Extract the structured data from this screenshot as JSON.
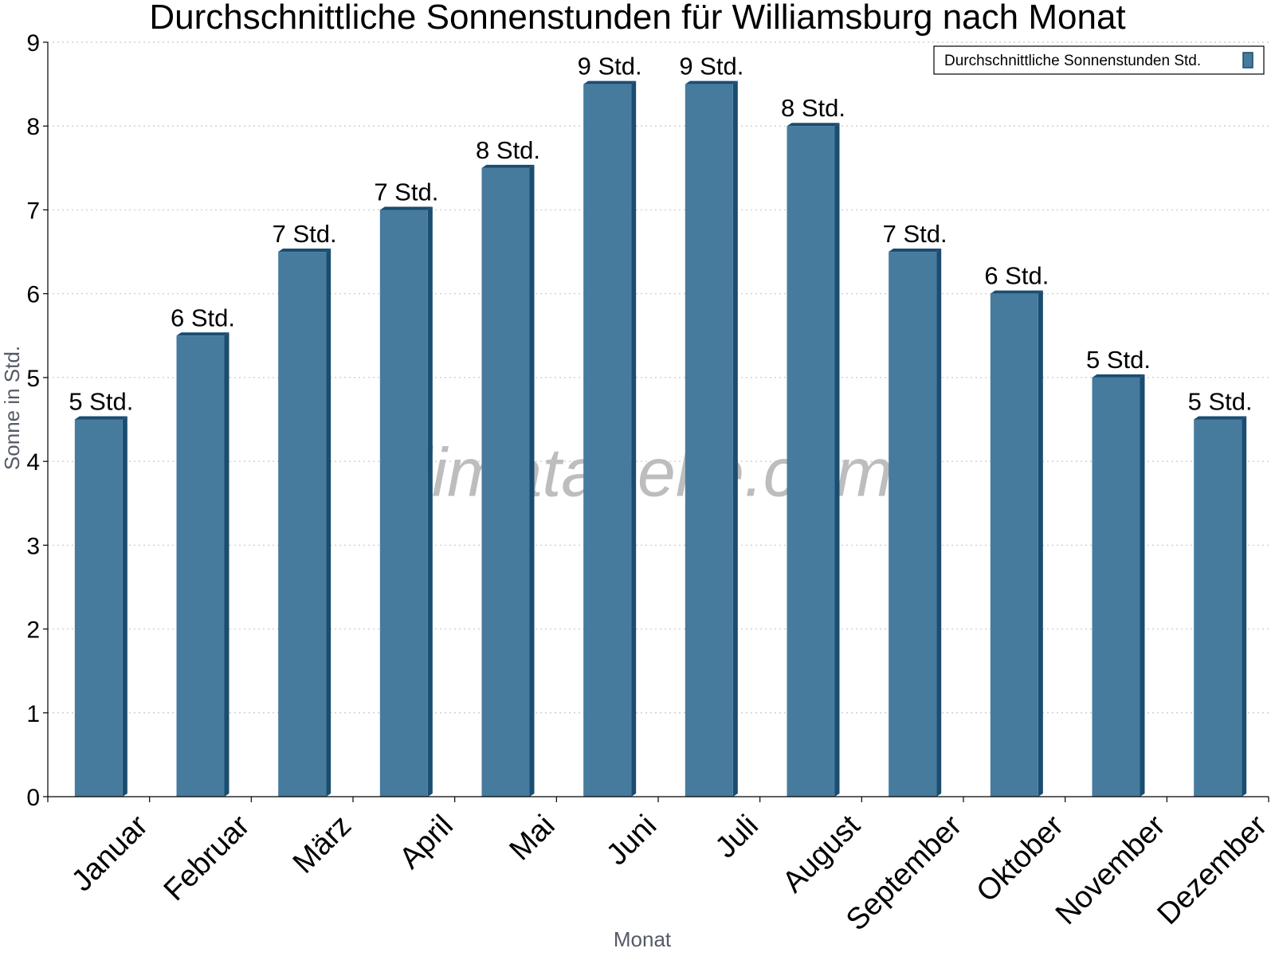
{
  "chart_data": {
    "type": "bar",
    "title": "Durchschnittliche Sonnenstunden für Williamsburg nach Monat",
    "xlabel": "Monat",
    "ylabel": "Sonne in Std.",
    "categories": [
      "Januar",
      "Februar",
      "März",
      "April",
      "Mai",
      "Juni",
      "Juli",
      "August",
      "September",
      "Oktober",
      "November",
      "Dezember"
    ],
    "series": [
      {
        "name": "Durchschnittliche Sonnenstunden Std.",
        "values": [
          4.5,
          5.5,
          6.5,
          7.0,
          7.5,
          8.5,
          8.5,
          8.0,
          6.5,
          6.0,
          5.0,
          4.5
        ],
        "data_labels": [
          "5 Std.",
          "6 Std.",
          "7 Std.",
          "7 Std.",
          "8 Std.",
          "9 Std.",
          "9 Std.",
          "8 Std.",
          "7 Std.",
          "6 Std.",
          "5 Std.",
          "5 Std."
        ],
        "color": "#467b9e"
      }
    ],
    "ylim": [
      0,
      9
    ],
    "yticks": [
      "0",
      "1",
      "2",
      "3",
      "4",
      "5",
      "6",
      "7",
      "8",
      "9"
    ],
    "grid": true,
    "legend": "top-right",
    "watermark": "klimatabelle.com",
    "colors": {
      "bar": "#467b9e",
      "bar_edge": "#1a4d70"
    }
  }
}
